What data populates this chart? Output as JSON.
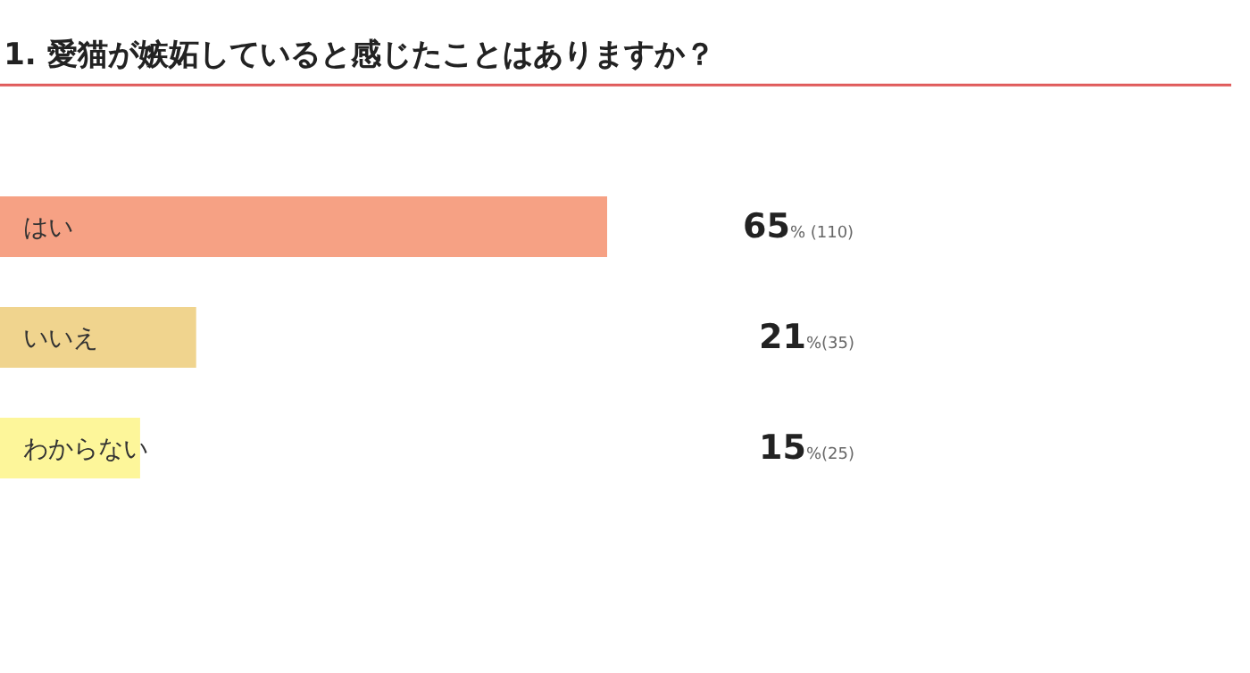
{
  "chart_data": {
    "type": "bar",
    "orientation": "horizontal",
    "title": "1. 愛猫が嫉妬していると感じたことはありますか？",
    "categories": [
      "はい",
      "いいえ",
      "わからない"
    ],
    "values": [
      65,
      21,
      15
    ],
    "colors": [
      "#f6a184",
      "#f0d48e",
      "#fdf69a"
    ],
    "value_labels": [
      "65% (110)",
      "21%(35)",
      "15%(25)"
    ]
  }
}
